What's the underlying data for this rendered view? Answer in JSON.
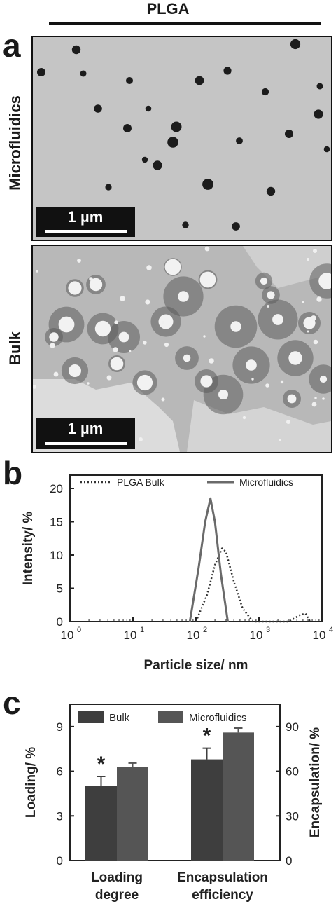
{
  "header": {
    "title": "PLGA"
  },
  "panel_a": {
    "letter": "a",
    "images": [
      {
        "label": "Microfluidics",
        "scale_bar": "1 µm",
        "background": "#c5c5c5",
        "particle_color": "#1c1c1c"
      },
      {
        "label": "Bulk",
        "scale_bar": "1 µm",
        "background": "#b8b8b8",
        "particle_color": "#f2f2f2"
      }
    ]
  },
  "panel_b": {
    "letter": "b"
  },
  "panel_c": {
    "letter": "c"
  },
  "chart_data": [
    {
      "type": "line",
      "xlabel": "Particle size/ nm",
      "ylabel": "Intensity/ %",
      "xscale": "log",
      "xlim": [
        1,
        10000
      ],
      "ylim": [
        0,
        22
      ],
      "xticks": [
        1,
        10,
        100,
        1000,
        10000
      ],
      "xtick_labels": [
        "10",
        "10",
        "10",
        "10",
        "10"
      ],
      "xtick_exponents": [
        "0",
        "1",
        "2",
        "3",
        "4"
      ],
      "yticks": [
        0,
        5,
        10,
        15,
        20
      ],
      "legend_position": "top",
      "series": [
        {
          "name": "PLGA Bulk",
          "style": "dotted",
          "color": "#333333",
          "x": [
            100,
            150,
            200,
            260,
            300,
            400,
            550,
            800,
            3000,
            4500,
            5500,
            6500
          ],
          "y": [
            0,
            4,
            8.5,
            11,
            10.5,
            6,
            2,
            0,
            0,
            1,
            1.2,
            0
          ]
        },
        {
          "name": "Microfluidics",
          "style": "solid",
          "color": "#6a6a6a",
          "x": [
            80,
            110,
            140,
            170,
            200,
            250,
            320
          ],
          "y": [
            0,
            8,
            15,
            18.5,
            15,
            7,
            0
          ]
        }
      ]
    },
    {
      "type": "bar",
      "categories": [
        "Loading degree",
        "Encapsulation efficiency"
      ],
      "category_lines": [
        [
          "Loading",
          "degree"
        ],
        [
          "Encapsulation",
          "efficiency"
        ]
      ],
      "ylabel": "Loading/ %",
      "ylabel_right": "Encapsulation/ %",
      "ylim": [
        0,
        10.5
      ],
      "ylim_right": [
        0,
        105
      ],
      "yticks": [
        0,
        3,
        6,
        9
      ],
      "yticks_right": [
        0,
        30,
        60,
        90
      ],
      "legend_position": "top",
      "series": [
        {
          "name": "Bulk",
          "color": "#3e3e3e",
          "values": [
            5.0,
            6.8
          ],
          "errors": [
            0.65,
            0.75
          ],
          "significance": [
            "*",
            "*"
          ]
        },
        {
          "name": "Microfluidics",
          "color": "#555555",
          "values": [
            6.3,
            8.6
          ],
          "errors": [
            0.25,
            0.3
          ],
          "significance": [
            "",
            ""
          ]
        }
      ]
    }
  ]
}
